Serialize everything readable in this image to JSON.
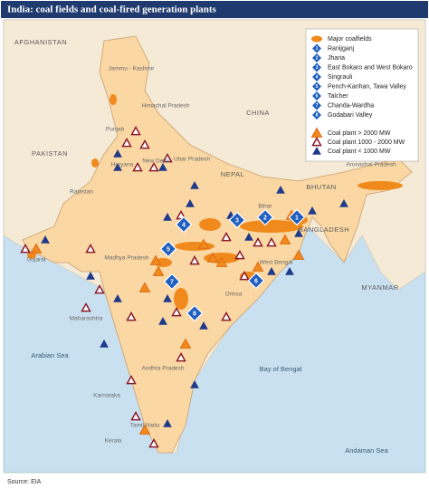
{
  "title": "India: coal fields and coal-fired generation plants",
  "source": "Source: EIA",
  "countries": [
    "AFGHANISTAN",
    "PAKISTAN",
    "CHINA",
    "NEPAL",
    "BHUTAN",
    "BANGLADESH",
    "MYANMAR"
  ],
  "seas": [
    "Arabian Sea",
    "Bay of Bengal",
    "Andaman Sea"
  ],
  "states": [
    "Jammu - Kashmir",
    "Himachal Pradesh",
    "Punjab",
    "Haryana",
    "New Delhi",
    "Uttar Pradesh",
    "Rajastan",
    "Bihar",
    "Arunachal Pradesh",
    "Gujarat",
    "Madhya Pradesh",
    "West Bengal",
    "Orissa",
    "Maharashtra",
    "Andhra Pradesh",
    "Karnataka",
    "Tamil Nadu",
    "Kerala"
  ],
  "legend": {
    "coalfields_label": "Major coalfields",
    "coalfields": [
      {
        "number": "1",
        "name": "Ranijganj"
      },
      {
        "number": "2",
        "name": "Jharia"
      },
      {
        "number": "3",
        "name": "East Bokaro and West Bokaro"
      },
      {
        "number": "4",
        "name": "Singrauli"
      },
      {
        "number": "5",
        "name": "Pench-Kanhan, Tawa Valley"
      },
      {
        "number": "6",
        "name": "Talcher"
      },
      {
        "number": "7",
        "name": "Chanda-Wardha"
      },
      {
        "number": "8",
        "name": "Godabari Valley"
      }
    ],
    "plants": [
      "Coal plant > 2000 MW",
      "Coal plant 1000 - 2000 MW",
      "Coal plant < 1000 MW"
    ]
  }
}
